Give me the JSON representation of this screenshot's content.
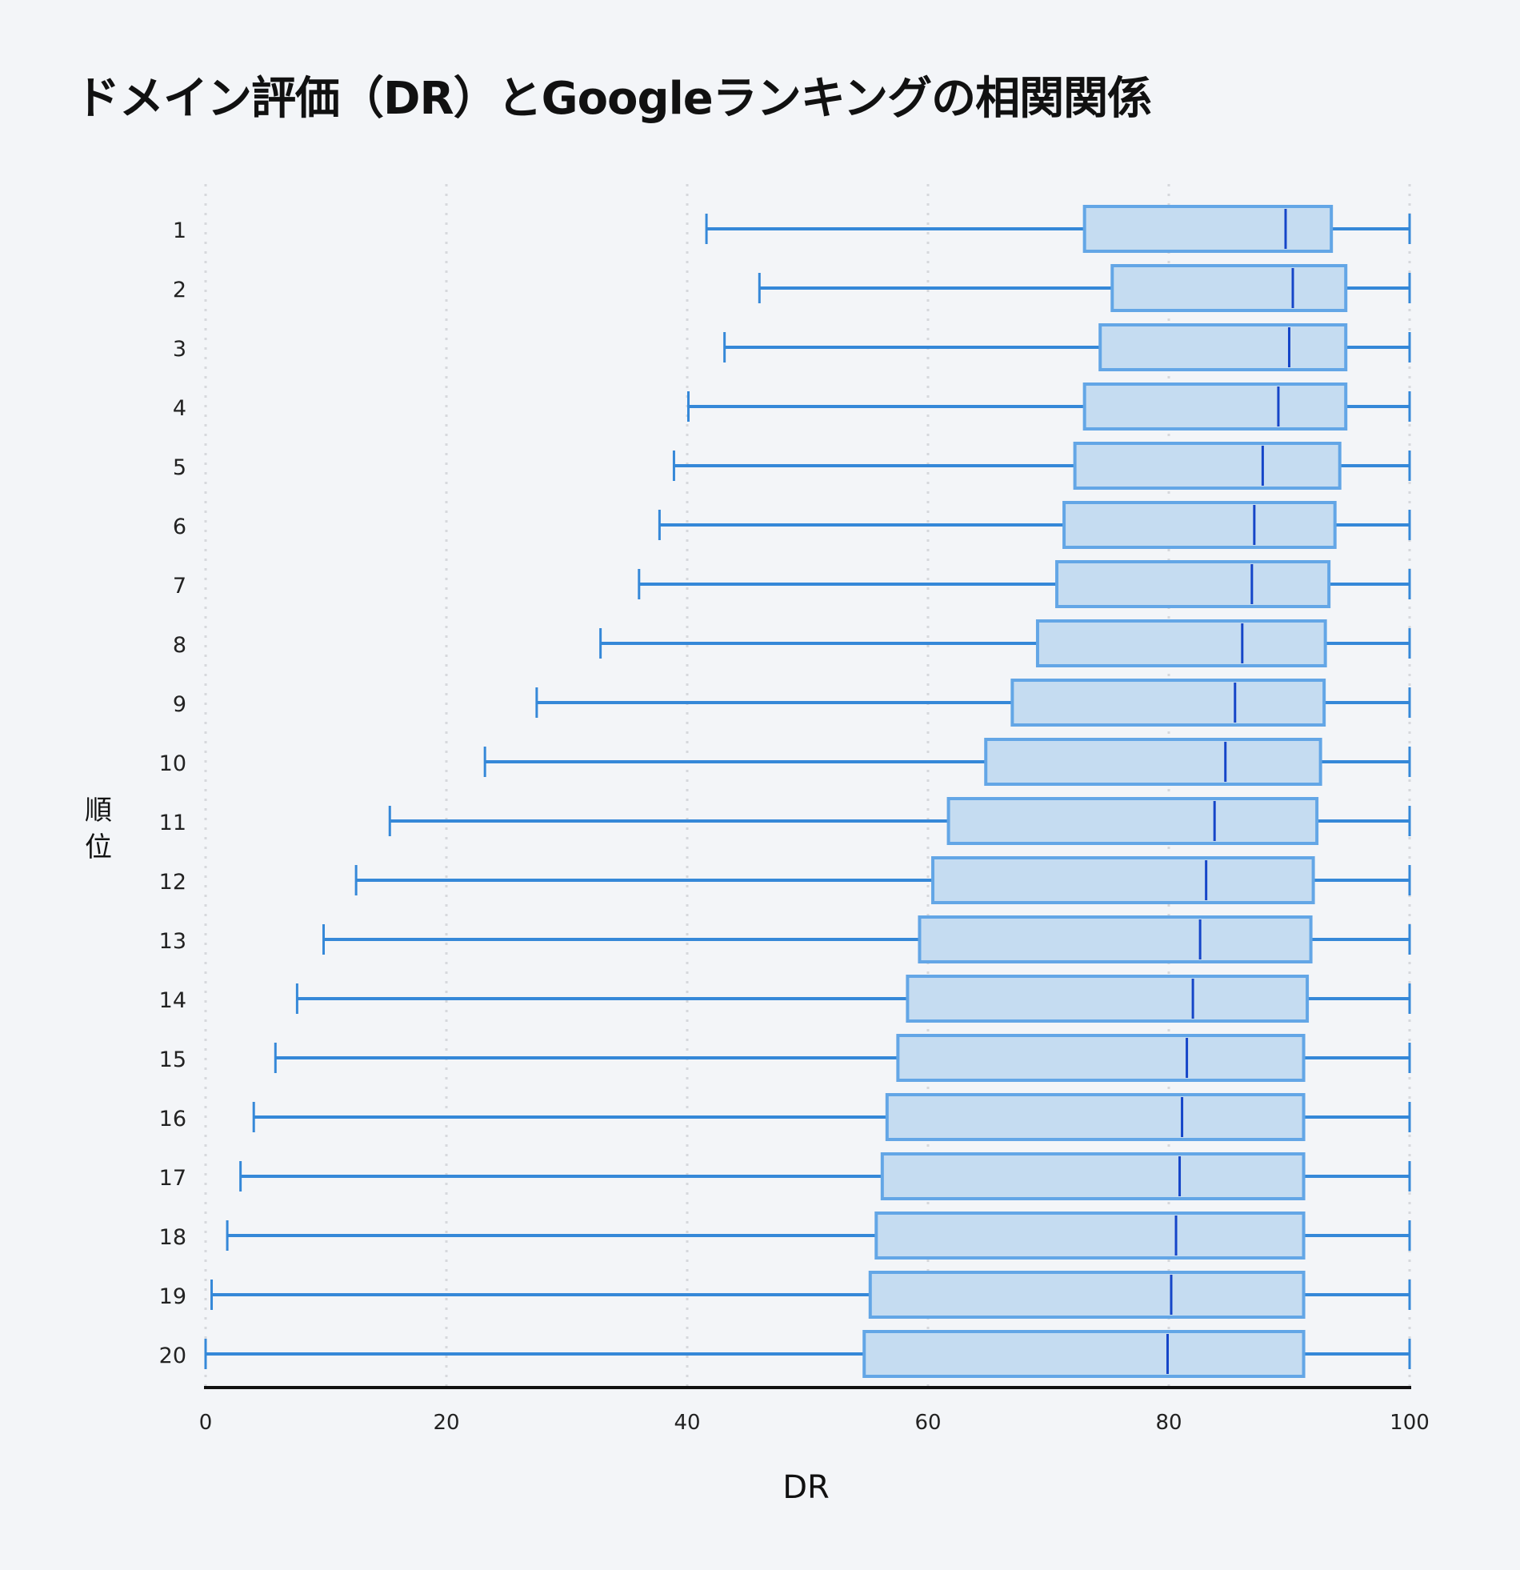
{
  "title": "ドメイン評価（DR）とGoogleランキングの相関関係",
  "colors": {
    "background": "#f3f5f8",
    "box_fill": "#c5dcf1",
    "box_stroke": "#63a6e6",
    "whisker": "#3588d8",
    "median": "#1545c8",
    "grid": "#d6d8dc",
    "axis": "#111111"
  },
  "chart_data": {
    "type": "boxplot",
    "orientation": "horizontal",
    "title": "ドメイン評価（DR）とGoogleランキングの相関関係",
    "xlabel": "DR",
    "ylabel": "順位",
    "xlim": [
      0,
      100
    ],
    "xticks": [
      0,
      20,
      40,
      60,
      80,
      100
    ],
    "grid": "vertical dotted",
    "categories": [
      "1",
      "2",
      "3",
      "4",
      "5",
      "6",
      "7",
      "8",
      "9",
      "10",
      "11",
      "12",
      "13",
      "14",
      "15",
      "16",
      "17",
      "18",
      "19",
      "20"
    ],
    "min": [
      41.6,
      46.0,
      43.1,
      40.1,
      38.9,
      37.7,
      36.0,
      32.8,
      27.5,
      23.2,
      15.3,
      12.5,
      9.8,
      7.6,
      5.8,
      4.0,
      2.9,
      1.8,
      0.5,
      0.0
    ],
    "q1": [
      73.0,
      75.3,
      74.3,
      73.0,
      72.2,
      71.3,
      70.7,
      69.1,
      67.0,
      64.8,
      61.7,
      60.4,
      59.3,
      58.3,
      57.5,
      56.6,
      56.2,
      55.7,
      55.2,
      54.7
    ],
    "median": [
      89.7,
      90.3,
      90.0,
      89.1,
      87.8,
      87.1,
      86.9,
      86.1,
      85.5,
      84.7,
      83.8,
      83.1,
      82.6,
      82.0,
      81.5,
      81.1,
      80.9,
      80.6,
      80.2,
      79.9
    ],
    "q3": [
      93.5,
      94.7,
      94.7,
      94.7,
      94.2,
      93.8,
      93.3,
      93.0,
      92.9,
      92.6,
      92.3,
      92.0,
      91.8,
      91.5,
      91.2,
      91.2,
      91.2,
      91.2,
      91.2,
      91.2
    ],
    "max": [
      100,
      100,
      100,
      100,
      100,
      100,
      100,
      100,
      100,
      100,
      100,
      100,
      100,
      100,
      100,
      100,
      100,
      100,
      100,
      100
    ]
  }
}
